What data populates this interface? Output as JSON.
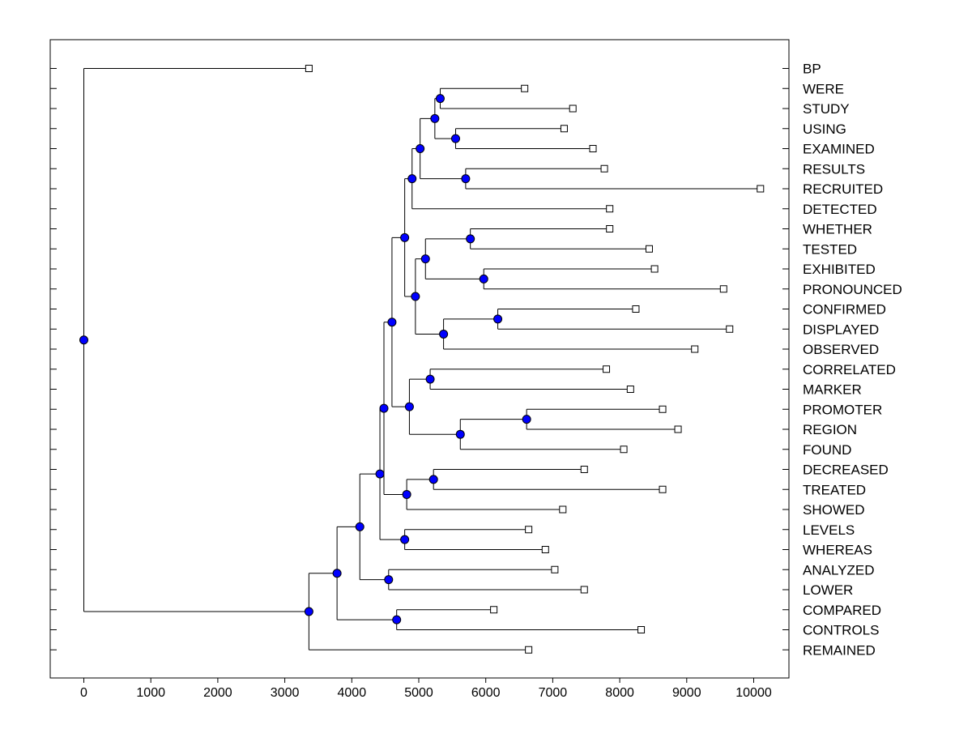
{
  "chart_data": {
    "type": "dendrogram",
    "orientation": "horizontal",
    "title": "",
    "xlabel": "",
    "ylabel": "",
    "xlim": [
      -500,
      10500
    ],
    "x_ticks": [
      0,
      1000,
      2000,
      3000,
      4000,
      5000,
      6000,
      7000,
      8000,
      9000,
      10000
    ],
    "x_tick_labels": [
      "0",
      "1000",
      "2000",
      "3000",
      "4000",
      "5000",
      "6000",
      "7000",
      "8000",
      "9000",
      "10000"
    ],
    "grid": false,
    "node_color": "#0000ff",
    "leaf_marker_color": "#ffffff",
    "line_color": "#000000",
    "leaves": [
      {
        "label": "BP",
        "value": 3360
      },
      {
        "label": "WERE",
        "value": 6580
      },
      {
        "label": "STUDY",
        "value": 7300
      },
      {
        "label": "USING",
        "value": 7170
      },
      {
        "label": "EXAMINED",
        "value": 7600
      },
      {
        "label": "RESULTS",
        "value": 7770
      },
      {
        "label": "RECRUITED",
        "value": 10100
      },
      {
        "label": "DETECTED",
        "value": 7850
      },
      {
        "label": "WHETHER",
        "value": 7850
      },
      {
        "label": "TESTED",
        "value": 8440
      },
      {
        "label": "EXHIBITED",
        "value": 8520
      },
      {
        "label": "PRONOUNCED",
        "value": 9550
      },
      {
        "label": "CONFIRMED",
        "value": 8240
      },
      {
        "label": "DISPLAYED",
        "value": 9640
      },
      {
        "label": "OBSERVED",
        "value": 9120
      },
      {
        "label": "CORRELATED",
        "value": 7800
      },
      {
        "label": "MARKER",
        "value": 8160
      },
      {
        "label": "PROMOTER",
        "value": 8640
      },
      {
        "label": "REGION",
        "value": 8870
      },
      {
        "label": "FOUND",
        "value": 8060
      },
      {
        "label": "DECREASED",
        "value": 7470
      },
      {
        "label": "TREATED",
        "value": 8640
      },
      {
        "label": "SHOWED",
        "value": 7150
      },
      {
        "label": "LEVELS",
        "value": 6640
      },
      {
        "label": "WHEREAS",
        "value": 6890
      },
      {
        "label": "ANALYZED",
        "value": 7030
      },
      {
        "label": "LOWER",
        "value": 7470
      },
      {
        "label": "COMPARED",
        "value": 6120
      },
      {
        "label": "CONTROLS",
        "value": 8320
      },
      {
        "label": "REMAINED",
        "value": 6640
      }
    ],
    "merges": [
      {
        "id": "n1",
        "value": 5320,
        "children": [
          "WERE",
          "STUDY"
        ]
      },
      {
        "id": "n2",
        "value": 5550,
        "children": [
          "USING",
          "EXAMINED"
        ]
      },
      {
        "id": "n3",
        "value": 5240,
        "children": [
          "n1",
          "n2"
        ]
      },
      {
        "id": "n4",
        "value": 5700,
        "children": [
          "RESULTS",
          "RECRUITED"
        ]
      },
      {
        "id": "n5",
        "value": 5020,
        "children": [
          "n3",
          "n4"
        ]
      },
      {
        "id": "n6",
        "value": 4900,
        "children": [
          "n5",
          "DETECTED"
        ]
      },
      {
        "id": "n7",
        "value": 5770,
        "children": [
          "WHETHER",
          "TESTED"
        ]
      },
      {
        "id": "n8",
        "value": 5970,
        "children": [
          "EXHIBITED",
          "PRONOUNCED"
        ]
      },
      {
        "id": "n9",
        "value": 5100,
        "children": [
          "n7",
          "n8"
        ]
      },
      {
        "id": "n10",
        "value": 6180,
        "children": [
          "CONFIRMED",
          "DISPLAYED"
        ]
      },
      {
        "id": "n11",
        "value": 5370,
        "children": [
          "n10",
          "OBSERVED"
        ]
      },
      {
        "id": "n12",
        "value": 4950,
        "children": [
          "n9",
          "n11"
        ]
      },
      {
        "id": "n13",
        "value": 4790,
        "children": [
          "n6",
          "n12"
        ]
      },
      {
        "id": "n14",
        "value": 5170,
        "children": [
          "CORRELATED",
          "MARKER"
        ]
      },
      {
        "id": "n15",
        "value": 6610,
        "children": [
          "PROMOTER",
          "REGION"
        ]
      },
      {
        "id": "n16",
        "value": 5620,
        "children": [
          "n15",
          "FOUND"
        ]
      },
      {
        "id": "n17",
        "value": 4860,
        "children": [
          "n14",
          "n16"
        ]
      },
      {
        "id": "n18",
        "value": 4600,
        "children": [
          "n13",
          "n17"
        ]
      },
      {
        "id": "n19",
        "value": 5220,
        "children": [
          "DECREASED",
          "TREATED"
        ]
      },
      {
        "id": "n20",
        "value": 4820,
        "children": [
          "n19",
          "SHOWED"
        ]
      },
      {
        "id": "n21",
        "value": 4480,
        "children": [
          "n18",
          "n20"
        ]
      },
      {
        "id": "n22",
        "value": 4790,
        "children": [
          "LEVELS",
          "WHEREAS"
        ]
      },
      {
        "id": "n23",
        "value": 4420,
        "children": [
          "n21",
          "n22"
        ]
      },
      {
        "id": "n24",
        "value": 4550,
        "children": [
          "ANALYZED",
          "LOWER"
        ]
      },
      {
        "id": "n25",
        "value": 4120,
        "children": [
          "n23",
          "n24"
        ]
      },
      {
        "id": "n26",
        "value": 4670,
        "children": [
          "COMPARED",
          "CONTROLS"
        ]
      },
      {
        "id": "n27",
        "value": 3780,
        "children": [
          "n25",
          "n26"
        ]
      },
      {
        "id": "n28",
        "value": 3360,
        "children": [
          "n27",
          "REMAINED"
        ]
      },
      {
        "id": "n29",
        "value": 0,
        "children": [
          "BP",
          "n28"
        ]
      }
    ]
  }
}
